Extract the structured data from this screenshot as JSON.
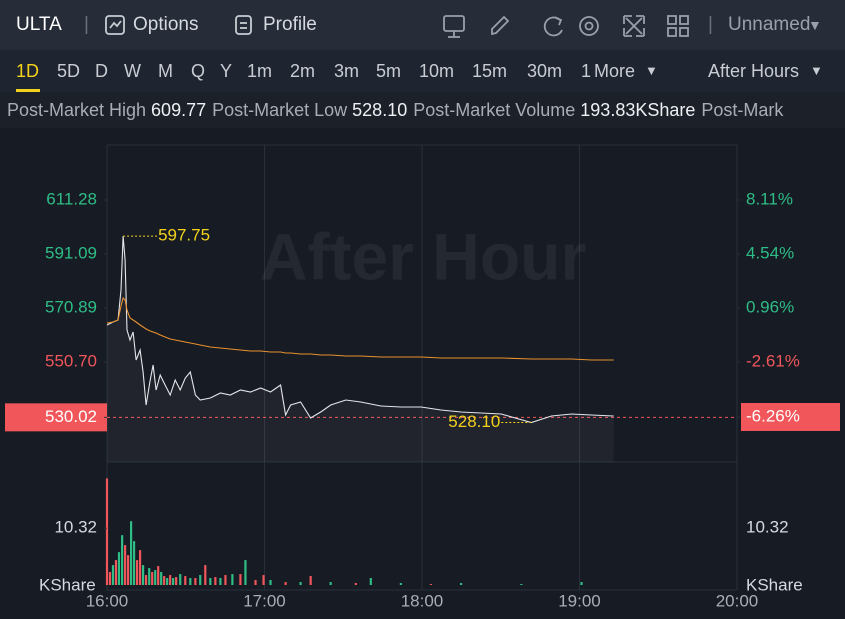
{
  "header": {
    "symbol": "ULTA",
    "tabs": [
      "Options",
      "Profile"
    ],
    "layout": "Unnamed"
  },
  "timeframes": {
    "items": [
      "1D",
      "5D",
      "D",
      "W",
      "M",
      "Q",
      "Y",
      "1m",
      "2m",
      "3m",
      "5m",
      "10m",
      "15m",
      "30m",
      "1",
      "More"
    ],
    "session": "After Hours"
  },
  "stats": [
    {
      "label": "Post-Market High",
      "value": "609.77"
    },
    {
      "label": "Post-Market Low",
      "value": "528.10"
    },
    {
      "label": "Post-Market Volume",
      "value": "193.83KShare"
    },
    {
      "label": "Post-Mark"
    }
  ],
  "chart_data": [
    {
      "type": "line",
      "watermark": "After Hour",
      "x": [
        16.0,
        16.038,
        16.07,
        16.089,
        16.102,
        16.115,
        16.127,
        16.146,
        16.166,
        16.185,
        16.21,
        16.229,
        16.248,
        16.274,
        16.293,
        16.312,
        16.338,
        16.369,
        16.401,
        16.433,
        16.465,
        16.497,
        16.529,
        16.561,
        16.592,
        16.656,
        16.72,
        16.783,
        16.847,
        16.911,
        16.975,
        17.038,
        17.102,
        17.134,
        17.166,
        17.229,
        17.293,
        17.357,
        17.42,
        17.516,
        17.611,
        17.739,
        17.866,
        17.994,
        18.121,
        18.248,
        18.376,
        18.503,
        18.694,
        18.822,
        18.949,
        19.076,
        19.217
      ],
      "series": [
        {
          "color": "#e4e6ea",
          "area": true,
          "values": [
            564.54,
            565.66,
            566.41,
            577.63,
            597.75,
            588.85,
            562.67,
            558.93,
            561.92,
            551.46,
            555.2,
            546.97,
            534.63,
            543.98,
            549.59,
            540.24,
            545.85,
            542.11,
            538.37,
            543.98,
            540.24,
            544.72,
            546.97,
            538.37,
            536.5,
            537.25,
            539.12,
            538.37,
            540.24,
            539.49,
            540.99,
            539.49,
            542.11,
            530.89,
            534.63,
            535.75,
            529.77,
            532.01,
            534.63,
            536.5,
            535.75,
            534.26,
            533.88,
            533.88,
            532.76,
            532.01,
            531.64,
            531.26,
            528.1,
            530.52,
            531.26,
            530.89,
            530.52
          ]
        },
        {
          "color": "#e8912d",
          "values": [
            565.29,
            565.66,
            566.41,
            571.65,
            574.64,
            573.89,
            570.15,
            567.16,
            566.41,
            565.66,
            564.54,
            563.8,
            563.05,
            562.3,
            561.92,
            561.55,
            560.8,
            560.06,
            559.31,
            558.93,
            558.56,
            558.18,
            557.81,
            557.44,
            557.06,
            556.31,
            555.94,
            555.57,
            555.2,
            554.82,
            554.82,
            554.45,
            554.45,
            554.08,
            554.08,
            553.7,
            553.7,
            553.33,
            553.33,
            552.95,
            552.95,
            552.58,
            552.58,
            552.58,
            552.21,
            552.21,
            552.21,
            552.21,
            551.83,
            551.83,
            551.83,
            551.46,
            551.46
          ]
        }
      ],
      "xlim": [
        16,
        20
      ],
      "ylim": [
        513.32,
        631.84
      ],
      "yticks": [
        611.28,
        591.09,
        570.89,
        {
          "value": 550.7,
          "label": "550.70"
        },
        530.02
      ],
      "y2lim": [
        -9.24,
        11.75
      ],
      "y2ticks": [
        {
          "value": 8.11,
          "label": "8.11%"
        },
        {
          "value": 4.54,
          "label": "4.54%"
        },
        {
          "value": 0.96,
          "label": "0.96%"
        },
        {
          "value": -2.61,
          "label": "-2.61%"
        },
        {
          "value": -6.26,
          "label": "-6.26%"
        }
      ],
      "up_color": "#2ebd85",
      "down_color": "#f0565a",
      "ref_line": {
        "y": 530.02,
        "color": "#f0565a"
      },
      "annotations": [
        {
          "x": 16.102,
          "y": 597.75,
          "label": "597.75",
          "side": "right"
        },
        {
          "x": 18.694,
          "y": 528.1,
          "label": "528.10",
          "side": "left"
        }
      ],
      "annotation_color": "#f2d21b"
    },
    {
      "type": "bar",
      "y_unit": "KShare",
      "x": [
        16.0,
        16.019,
        16.038,
        16.057,
        16.076,
        16.096,
        16.115,
        16.134,
        16.153,
        16.172,
        16.191,
        16.21,
        16.229,
        16.248,
        16.268,
        16.287,
        16.306,
        16.325,
        16.344,
        16.363,
        16.382,
        16.401,
        16.42,
        16.439,
        16.465,
        16.497,
        16.529,
        16.561,
        16.592,
        16.624,
        16.656,
        16.688,
        16.72,
        16.752,
        16.796,
        16.847,
        16.879,
        16.943,
        16.994,
        17.038,
        17.134,
        17.229,
        17.293,
        17.42,
        17.58,
        17.675,
        17.866,
        18.057,
        18.248,
        18.631,
        19.013
      ],
      "values": [
        19.38,
        2.36,
        3.62,
        4.53,
        5.98,
        9.06,
        7.25,
        5.43,
        11.6,
        7.97,
        4.53,
        6.34,
        3.62,
        1.81,
        3.08,
        2.36,
        2.72,
        3.44,
        2.36,
        1.63,
        1.27,
        1.81,
        1.27,
        1.45,
        1.99,
        1.63,
        1.27,
        1.27,
        1.81,
        3.62,
        1.27,
        1.45,
        1.27,
        1.81,
        1.99,
        1.99,
        4.53,
        0.91,
        1.81,
        0.91,
        0.54,
        0.54,
        1.63,
        0.54,
        0.36,
        1.27,
        0.36,
        0.18,
        0.36,
        0.18,
        0.54
      ],
      "colors": [
        "#f0565a",
        "#f0565a",
        "#2ebd85",
        "#f0565a",
        "#2ebd85",
        "#2ebd85",
        "#f0565a",
        "#f0565a",
        "#2ebd85",
        "#2ebd85",
        "#f0565a",
        "#f0565a",
        "#2ebd85",
        "#f0565a",
        "#2ebd85",
        "#f0565a",
        "#2ebd85",
        "#f0565a",
        "#2ebd85",
        "#f0565a",
        "#2ebd85",
        "#f0565a",
        "#2ebd85",
        "#f0565a",
        "#2ebd85",
        "#f0565a",
        "#2ebd85",
        "#f0565a",
        "#2ebd85",
        "#f0565a",
        "#2ebd85",
        "#f0565a",
        "#2ebd85",
        "#f0565a",
        "#2ebd85",
        "#f0565a",
        "#2ebd85",
        "#f0565a",
        "#f0565a",
        "#2ebd85",
        "#f0565a",
        "#2ebd85",
        "#f0565a",
        "#2ebd85",
        "#f0565a",
        "#2ebd85",
        "#2ebd85",
        "#f0565a",
        "#2ebd85",
        "#2ebd85",
        "#2ebd85"
      ],
      "xlim": [
        16,
        20
      ],
      "xticks": [
        {
          "value": 16,
          "label": "16:00"
        },
        {
          "value": 17,
          "label": "17:00"
        },
        {
          "value": 18,
          "label": "18:00"
        },
        {
          "value": 19,
          "label": "19:00"
        },
        {
          "value": 20,
          "label": "20:00"
        }
      ],
      "ylim": [
        0,
        20
      ],
      "yticks": [
        10.32
      ]
    }
  ]
}
